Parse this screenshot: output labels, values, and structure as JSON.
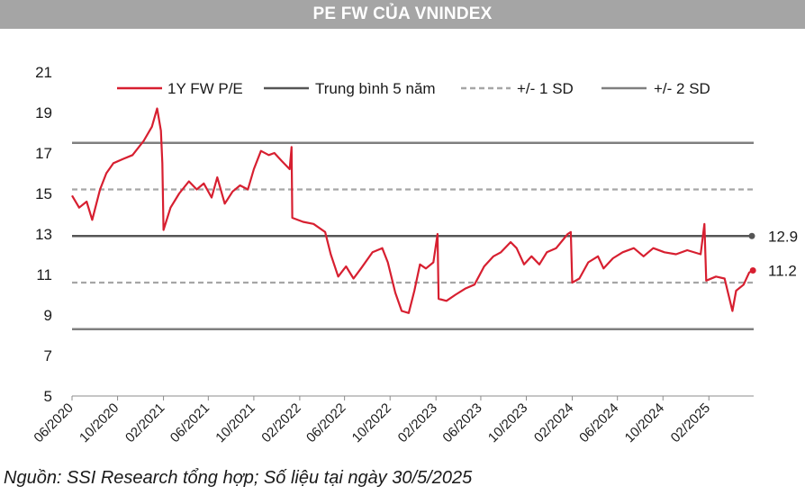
{
  "header": {
    "title": "PE FW CỦA VNINDEX"
  },
  "footer": {
    "source": "Nguồn: SSI Research tổng hợp; Số liệu tại ngày 30/5/2025"
  },
  "chart_data": {
    "type": "line",
    "title": "PE FW CỦA VNINDEX",
    "xlabel": "",
    "ylabel": "",
    "ylim": [
      5,
      21
    ],
    "yticks": [
      5,
      7,
      9,
      11,
      13,
      15,
      17,
      19,
      21
    ],
    "xticks": [
      "06/2020",
      "10/2020",
      "02/2021",
      "06/2021",
      "10/2021",
      "02/2022",
      "06/2022",
      "10/2022",
      "02/2023",
      "06/2023",
      "10/2023",
      "02/2024",
      "06/2024",
      "10/2024",
      "02/2025"
    ],
    "x_range": [
      "2020-06-01",
      "2025-06-01"
    ],
    "legend_position": "top",
    "grid": false,
    "colors": {
      "pe": "#d71f30",
      "mean": "#555555",
      "sd1": "#a6a6a6",
      "sd2": "#7f7f7f"
    },
    "series": [
      {
        "name": "1Y FW P/E",
        "color": "#d71f30",
        "points": [
          [
            "2020-06-01",
            14.9
          ],
          [
            "2020-06-20",
            14.3
          ],
          [
            "2020-07-10",
            14.6
          ],
          [
            "2020-07-25",
            13.7
          ],
          [
            "2020-08-15",
            15.2
          ],
          [
            "2020-09-01",
            16.0
          ],
          [
            "2020-09-20",
            16.5
          ],
          [
            "2020-10-15",
            16.7
          ],
          [
            "2020-11-10",
            16.9
          ],
          [
            "2020-12-10",
            17.6
          ],
          [
            "2021-01-01",
            18.3
          ],
          [
            "2021-01-15",
            19.2
          ],
          [
            "2021-01-25",
            18.1
          ],
          [
            "2021-01-29",
            16.5
          ],
          [
            "2021-02-01",
            13.2
          ],
          [
            "2021-02-20",
            14.3
          ],
          [
            "2021-03-15",
            15.0
          ],
          [
            "2021-04-10",
            15.6
          ],
          [
            "2021-05-01",
            15.2
          ],
          [
            "2021-05-20",
            15.5
          ],
          [
            "2021-06-10",
            14.8
          ],
          [
            "2021-06-25",
            15.8
          ],
          [
            "2021-07-15",
            14.5
          ],
          [
            "2021-08-05",
            15.1
          ],
          [
            "2021-08-25",
            15.4
          ],
          [
            "2021-09-15",
            15.2
          ],
          [
            "2021-10-01",
            16.2
          ],
          [
            "2021-10-20",
            17.1
          ],
          [
            "2021-11-10",
            16.9
          ],
          [
            "2021-11-25",
            17.0
          ],
          [
            "2021-12-15",
            16.6
          ],
          [
            "2022-01-05",
            16.2
          ],
          [
            "2022-01-10",
            17.3
          ],
          [
            "2022-01-12",
            13.8
          ],
          [
            "2022-02-10",
            13.6
          ],
          [
            "2022-03-10",
            13.5
          ],
          [
            "2022-04-10",
            13.1
          ],
          [
            "2022-04-25",
            12.0
          ],
          [
            "2022-05-15",
            10.9
          ],
          [
            "2022-06-05",
            11.4
          ],
          [
            "2022-06-25",
            10.8
          ],
          [
            "2022-07-15",
            11.3
          ],
          [
            "2022-08-15",
            12.1
          ],
          [
            "2022-09-10",
            12.3
          ],
          [
            "2022-09-25",
            11.6
          ],
          [
            "2022-10-15",
            10.1
          ],
          [
            "2022-11-01",
            9.2
          ],
          [
            "2022-11-20",
            9.1
          ],
          [
            "2022-12-05",
            10.2
          ],
          [
            "2022-12-20",
            11.5
          ],
          [
            "2023-01-05",
            11.3
          ],
          [
            "2023-01-25",
            11.6
          ],
          [
            "2023-02-05",
            13.0
          ],
          [
            "2023-02-08",
            9.8
          ],
          [
            "2023-03-01",
            9.7
          ],
          [
            "2023-03-25",
            10.0
          ],
          [
            "2023-04-20",
            10.3
          ],
          [
            "2023-05-15",
            10.5
          ],
          [
            "2023-06-10",
            11.4
          ],
          [
            "2023-07-05",
            11.9
          ],
          [
            "2023-07-25",
            12.1
          ],
          [
            "2023-08-20",
            12.6
          ],
          [
            "2023-09-05",
            12.3
          ],
          [
            "2023-09-25",
            11.5
          ],
          [
            "2023-10-15",
            11.9
          ],
          [
            "2023-11-05",
            11.5
          ],
          [
            "2023-11-25",
            12.1
          ],
          [
            "2023-12-20",
            12.3
          ],
          [
            "2024-01-20",
            13.0
          ],
          [
            "2024-01-28",
            13.1
          ],
          [
            "2024-02-01",
            10.6
          ],
          [
            "2024-02-20",
            10.8
          ],
          [
            "2024-03-15",
            11.6
          ],
          [
            "2024-04-10",
            11.9
          ],
          [
            "2024-04-25",
            11.3
          ],
          [
            "2024-05-20",
            11.8
          ],
          [
            "2024-06-15",
            12.1
          ],
          [
            "2024-07-15",
            12.3
          ],
          [
            "2024-08-10",
            11.9
          ],
          [
            "2024-09-05",
            12.3
          ],
          [
            "2024-10-05",
            12.1
          ],
          [
            "2024-11-05",
            12.0
          ],
          [
            "2024-12-05",
            12.2
          ],
          [
            "2025-01-10",
            12.0
          ],
          [
            "2025-01-20",
            13.5
          ],
          [
            "2025-01-25",
            10.7
          ],
          [
            "2025-02-20",
            10.9
          ],
          [
            "2025-03-15",
            10.8
          ],
          [
            "2025-04-05",
            9.2
          ],
          [
            "2025-04-15",
            10.2
          ],
          [
            "2025-05-05",
            10.5
          ],
          [
            "2025-05-20",
            11.1
          ],
          [
            "2025-05-30",
            11.2
          ]
        ]
      },
      {
        "name": "Trung bình 5 năm",
        "color": "#555555",
        "style": "solid",
        "value": 12.9
      },
      {
        "name": "+/- 1 SD",
        "color": "#a6a6a6",
        "style": "dashed",
        "values": [
          15.2,
          10.6
        ]
      },
      {
        "name": "+/- 2 SD",
        "color": "#7f7f7f",
        "style": "solid",
        "values": [
          17.5,
          8.3
        ]
      }
    ],
    "annotations": [
      {
        "label": "12.9",
        "y": 12.9
      },
      {
        "label": "11.2",
        "y": 11.2
      }
    ]
  }
}
